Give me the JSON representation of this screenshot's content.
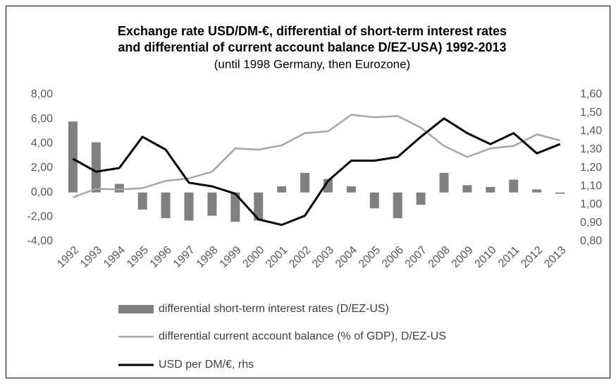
{
  "chart_data": {
    "type": "bar_line",
    "title": [
      "Exchange rate  USD/DM-€,  differential of short-term interest rates",
      "and differential of current account balance D/EZ-USA) 1992-2013"
    ],
    "subtitle": "(until 1998 Germany, then Eurozone)",
    "categories": [
      "1992",
      "1993",
      "1994",
      "1995",
      "1996",
      "1997",
      "1998",
      "1999",
      "2000",
      "2001",
      "2002",
      "2003",
      "2004",
      "2005",
      "2006",
      "2007",
      "2008",
      "2009",
      "2010",
      "2011",
      "2012",
      "2013"
    ],
    "series": [
      {
        "name": "differential short-term interest rates (D/EZ-US)",
        "kind": "bar",
        "color": "#808080",
        "axis": "y",
        "values": [
          5.8,
          4.1,
          0.7,
          -1.4,
          -2.1,
          -2.3,
          -1.9,
          -2.4,
          -2.3,
          0.5,
          1.6,
          1.1,
          0.5,
          -1.3,
          -2.1,
          -1.0,
          1.6,
          0.6,
          0.45,
          1.05,
          0.25,
          -0.1
        ]
      },
      {
        "name": "differential current account balance (% of GDP), D/EZ-US",
        "kind": "line",
        "color": "#a6a6a6",
        "axis": "y",
        "values": [
          -0.4,
          0.3,
          0.25,
          0.35,
          0.95,
          1.15,
          1.7,
          3.6,
          3.5,
          3.85,
          4.85,
          5.0,
          6.35,
          6.15,
          6.25,
          5.3,
          3.8,
          2.9,
          3.6,
          3.8,
          4.75,
          4.25
        ]
      },
      {
        "name": "USD per DM/€, rhs",
        "kind": "line",
        "color": "#000000",
        "axis": "y2",
        "values": [
          1.25,
          1.18,
          1.2,
          1.37,
          1.3,
          1.12,
          1.1,
          1.06,
          0.92,
          0.89,
          0.94,
          1.13,
          1.24,
          1.24,
          1.26,
          1.37,
          1.47,
          1.39,
          1.33,
          1.39,
          1.28,
          1.33
        ]
      }
    ],
    "ylim": [
      -4,
      8
    ],
    "yticks": [
      {
        "value": 8,
        "label": "8,00"
      },
      {
        "value": 6,
        "label": "6,00"
      },
      {
        "value": 4,
        "label": "4,00"
      },
      {
        "value": 2,
        "label": "2,00"
      },
      {
        "value": 0,
        "label": "0,00"
      },
      {
        "value": -2,
        "label": "-2,00"
      },
      {
        "value": -4,
        "label": "-4,00"
      }
    ],
    "y2lim": [
      0.8,
      1.6
    ],
    "y2ticks": [
      {
        "value": 1.6,
        "label": "1,60"
      },
      {
        "value": 1.5,
        "label": "1,50"
      },
      {
        "value": 1.4,
        "label": "1,40"
      },
      {
        "value": 1.3,
        "label": "1,30"
      },
      {
        "value": 1.2,
        "label": "1,20"
      },
      {
        "value": 1.1,
        "label": "1,10"
      },
      {
        "value": 1.0,
        "label": "1,00"
      },
      {
        "value": 0.9,
        "label": "0,90"
      },
      {
        "value": 0.8,
        "label": "0,80"
      }
    ],
    "legend": "bottom"
  }
}
